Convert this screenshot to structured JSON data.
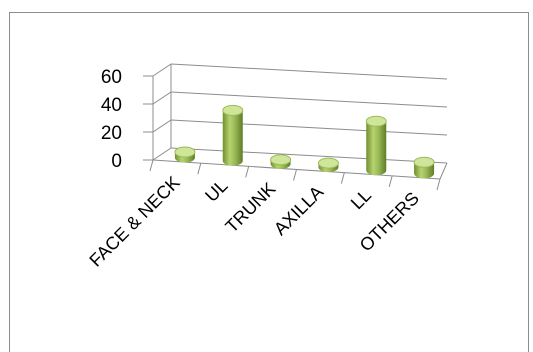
{
  "chart_data": {
    "type": "bar",
    "style": "3d-cylinder",
    "categories": [
      "FACE & NECK",
      "UL",
      "TRUNK",
      "AXILLA",
      "LL",
      "OTHERS"
    ],
    "values": [
      4,
      36,
      3,
      1,
      35,
      8
    ],
    "y_ticks": [
      "0",
      "20",
      "40",
      "60"
    ],
    "ylim": [
      0,
      60
    ],
    "grid": true,
    "legend": "none",
    "colors": {
      "bar": "#9bbb59",
      "bar_dark": "#6f8f2e",
      "bar_light": "#cfe59a",
      "axis": "#8c8c8c"
    }
  }
}
